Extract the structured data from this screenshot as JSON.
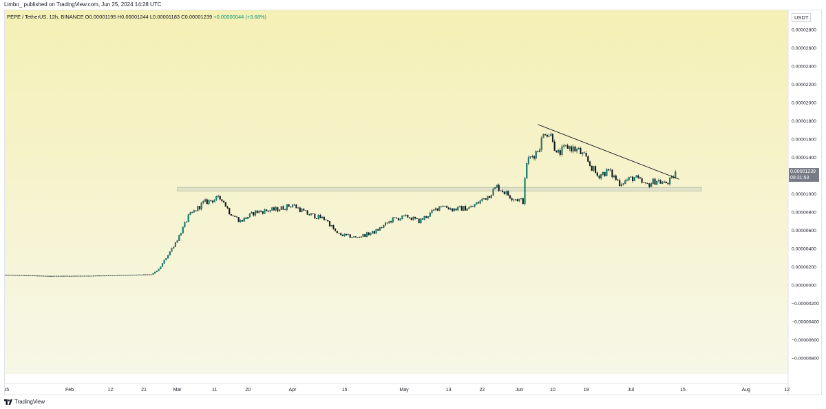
{
  "header": {
    "published_text": "Limbo_ published on TradingView.com, Jun 25, 2024 14:28 UTC"
  },
  "legend": {
    "symbol": "PEPE / TetherUS, 12h, BINANCE",
    "open": "O0.00001195",
    "high": "H0.00001244",
    "low": "L0.00001183",
    "close": "C0.00001239",
    "change": "+0.00000044 (+3.68%)"
  },
  "price_axis": {
    "unit": "USDT",
    "last_price": "0.00001239",
    "countdown": "09:31:53"
  },
  "footer": {
    "brand": "TradingView"
  },
  "colors": {
    "background_top": "#f5f0b5",
    "background_bottom": "#f7f7e8",
    "candle_up": "#089981",
    "candle_down": "#131722",
    "resistance_zone": "#d9dcc8",
    "trendline": "#131722"
  },
  "chart_data": {
    "type": "candlestick",
    "title": "PEPE / TetherUS, 12h, BINANCE",
    "ylabel": "USDT",
    "ylim": [
      -9e-07,
      2.9e-06
    ],
    "y_ticks": [
      "0.00002800",
      "0.00002600",
      "0.00002400",
      "0.00002200",
      "0.00002000",
      "0.00001800",
      "0.00001600",
      "0.00001400",
      "0.00001200",
      "0.00001000",
      "0.00000800",
      "0.00000600",
      "0.00000400",
      "0.00000200",
      "0.00000000",
      "−0.00000200",
      "−0.00000400",
      "−0.00000600",
      "−0.00000800"
    ],
    "y_tick_values": [
      2.8e-05,
      2.6e-05,
      2.4e-05,
      2.2e-05,
      2e-05,
      1.8e-05,
      1.6e-05,
      1.4e-05,
      1.2e-05,
      1e-05,
      8e-06,
      6e-06,
      4e-06,
      2e-06,
      0,
      -2e-06,
      -4e-06,
      -6e-06,
      -8e-06
    ],
    "x_ticks": [
      "15",
      "Feb",
      "12",
      "21",
      "Mar",
      "11",
      "20",
      "Apr",
      "15",
      "May",
      "13",
      "22",
      "Jun",
      "10",
      "19",
      "Jul",
      "15",
      "Aug",
      "12"
    ],
    "x_tick_days": [
      -17,
      0,
      11,
      20,
      29,
      39,
      48,
      60,
      74,
      90,
      102,
      111,
      121,
      130,
      139,
      151,
      165,
      182,
      193
    ],
    "x_axis_origin": "2024-02-01",
    "price_path": [
      [
        "2024-01-14",
        1.1e-06
      ],
      [
        "2024-01-20",
        1.05e-06
      ],
      [
        "2024-01-27",
        9.8e-07
      ],
      [
        "2024-02-05",
        1e-06
      ],
      [
        "2024-02-13",
        1.05e-06
      ],
      [
        "2024-02-19",
        1.12e-06
      ],
      [
        "2024-02-23",
        1.15e-06
      ],
      [
        "2024-02-25",
        1.7e-06
      ],
      [
        "2024-02-27",
        3e-06
      ],
      [
        "2024-03-01",
        5e-06
      ],
      [
        "2024-03-04",
        7.5e-06
      ],
      [
        "2024-03-08",
        9e-06
      ],
      [
        "2024-03-11",
        9.4e-06
      ],
      [
        "2024-03-13",
        9.5e-06
      ],
      [
        "2024-03-15",
        8e-06
      ],
      [
        "2024-03-18",
        7e-06
      ],
      [
        "2024-03-22",
        8e-06
      ],
      [
        "2024-03-28",
        8.3e-06
      ],
      [
        "2024-04-01",
        8.8e-06
      ],
      [
        "2024-04-05",
        7.8e-06
      ],
      [
        "2024-04-10",
        7.2e-06
      ],
      [
        "2024-04-13",
        5.6e-06
      ],
      [
        "2024-04-18",
        5.2e-06
      ],
      [
        "2024-04-23",
        5.8e-06
      ],
      [
        "2024-04-28",
        7.2e-06
      ],
      [
        "2024-05-02",
        7.5e-06
      ],
      [
        "2024-05-05",
        7e-06
      ],
      [
        "2024-05-08",
        7.8e-06
      ],
      [
        "2024-05-11",
        8.8e-06
      ],
      [
        "2024-05-14",
        8.3e-06
      ],
      [
        "2024-05-19",
        8.5e-06
      ],
      [
        "2024-05-24",
        9.9e-06
      ],
      [
        "2024-05-26",
        1.08e-05
      ],
      [
        "2024-05-30",
        9.6e-06
      ],
      [
        "2024-06-02",
        9.2e-06
      ],
      [
        "2024-06-03",
        1.35e-05
      ],
      [
        "2024-06-06",
        1.48e-05
      ],
      [
        "2024-06-08",
        1.69e-05
      ],
      [
        "2024-06-10",
        1.62e-05
      ],
      [
        "2024-06-11",
        1.42e-05
      ],
      [
        "2024-06-14",
        1.52e-05
      ],
      [
        "2024-06-17",
        1.47e-05
      ],
      [
        "2024-06-19",
        1.38e-05
      ],
      [
        "2024-06-22",
        1.2e-05
      ],
      [
        "2024-06-25",
        1.25e-05
      ],
      [
        "2024-06-28",
        1.12e-05
      ],
      [
        "2024-07-02",
        1.18e-05
      ],
      [
        "2024-07-05",
        1.09e-05
      ],
      [
        "2024-07-08",
        1.15e-05
      ],
      [
        "2024-07-10",
        1.11e-05
      ],
      [
        "2024-07-12",
        1.15e-05
      ],
      [
        "2024-07-13",
        1.239e-05
      ]
    ],
    "resistance_zone": {
      "low": 1.03e-05,
      "high": 1.07e-05,
      "x_start": "2024-03-01",
      "x_end": "2024-07-20"
    },
    "trendline": {
      "start": [
        "2024-06-06",
        1.76e-05
      ],
      "end": [
        "2024-07-14",
        1.16e-05
      ]
    }
  }
}
